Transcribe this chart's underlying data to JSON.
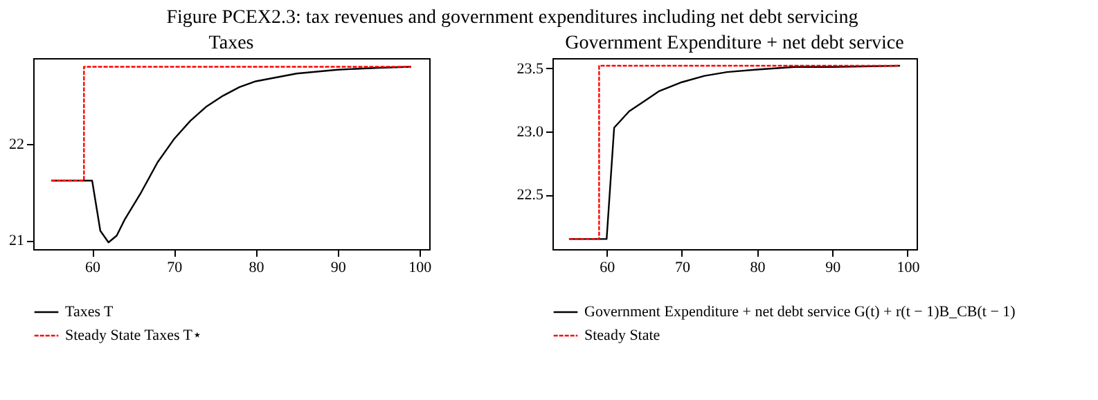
{
  "chart_data": [
    {
      "type": "line",
      "title": "Taxes",
      "annotations": [
        "Figure PCEX2.3: tax revenues and government expenditures including net debt servicing"
      ],
      "xlim": [
        52.8,
        101.2
      ],
      "xticks": [
        60,
        70,
        80,
        90,
        100
      ],
      "ylim": [
        20.91,
        22.89
      ],
      "yticks": [
        21,
        22
      ],
      "grid": false,
      "legend": "bottom",
      "series": [
        {
          "name": "Taxes T",
          "color": "#000000",
          "line_style": "solid",
          "x": [
            55,
            60,
            61,
            62,
            63,
            64,
            66,
            68,
            70,
            72,
            74,
            76,
            78,
            80,
            85,
            90,
            95,
            99
          ],
          "values": [
            21.62,
            21.62,
            21.1,
            20.98,
            21.05,
            21.22,
            21.5,
            21.81,
            22.05,
            22.24,
            22.39,
            22.5,
            22.59,
            22.65,
            22.73,
            22.77,
            22.79,
            22.8
          ]
        },
        {
          "name": "Steady State Taxes T⋆",
          "color": "#ff0000",
          "line_style": "dashed",
          "x": [
            55,
            59,
            59,
            99
          ],
          "values": [
            21.62,
            21.62,
            22.8,
            22.8
          ]
        }
      ]
    },
    {
      "type": "line",
      "title": "Government Expenditure + net debt service",
      "xlim": [
        52.8,
        101.2
      ],
      "xticks": [
        60,
        70,
        80,
        90,
        100
      ],
      "ylim": [
        22.07,
        23.58
      ],
      "yticks": [
        22.5,
        {
          "value": 23,
          "label": "23.0"
        },
        23.5
      ],
      "grid": false,
      "legend": "bottom",
      "series": [
        {
          "name": "Government Expenditure + net debt service G(t) + r(t − 1)B_CB(t − 1)",
          "color": "#000000",
          "line_style": "solid",
          "x": [
            55,
            60,
            61,
            63,
            65,
            67,
            70,
            73,
            76,
            80,
            85,
            90,
            99
          ],
          "values": [
            22.15,
            22.15,
            23.03,
            23.16,
            23.24,
            23.32,
            23.39,
            23.44,
            23.47,
            23.49,
            23.51,
            23.51,
            23.52
          ]
        },
        {
          "name": "Steady State",
          "color": "#ff0000",
          "line_style": "dashed",
          "x": [
            55,
            59,
            59,
            99
          ],
          "values": [
            22.15,
            22.15,
            23.52,
            23.52
          ]
        }
      ]
    }
  ]
}
